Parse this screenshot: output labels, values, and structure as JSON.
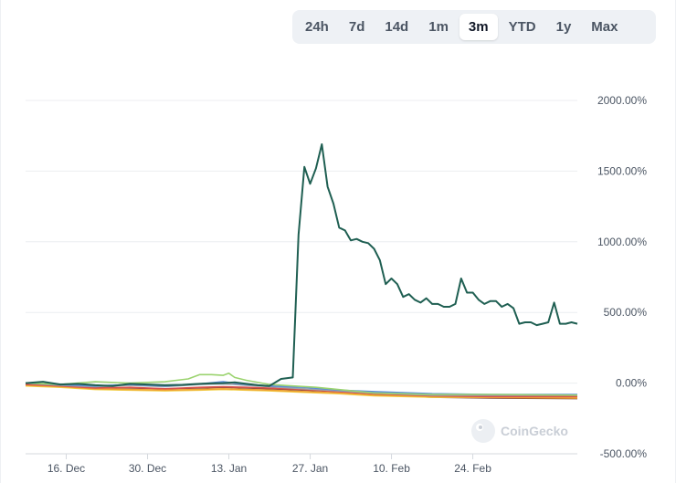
{
  "range_selector": {
    "options": [
      "24h",
      "7d",
      "14d",
      "1m",
      "3m",
      "YTD",
      "1y",
      "Max"
    ],
    "selected": "3m"
  },
  "watermark": "CoinGecko",
  "chart_data": {
    "type": "line",
    "x_tick_labels": [
      "16. Dec",
      "30. Dec",
      "13. Jan",
      "27. Jan",
      "10. Feb",
      "24. Feb"
    ],
    "y_tick_labels": [
      "2000.00%",
      "1500.00%",
      "1000.00%",
      "500.00%",
      "0.00%",
      "-500.00%"
    ],
    "ylim": [
      -500,
      2000
    ],
    "grid": "horizontal",
    "x_unit": "days since start of 3m window (16. Dec = day 7)",
    "series": [
      {
        "color": "#1f5f52",
        "points": [
          [
            0,
            0
          ],
          [
            3,
            10
          ],
          [
            6,
            -10
          ],
          [
            9,
            -5
          ],
          [
            12,
            -15
          ],
          [
            15,
            -20
          ],
          [
            18,
            -5
          ],
          [
            21,
            -10
          ],
          [
            24,
            -15
          ],
          [
            27,
            -12
          ],
          [
            30,
            -5
          ],
          [
            32,
            -2
          ],
          [
            34,
            0
          ],
          [
            36,
            5
          ],
          [
            38,
            -5
          ],
          [
            40,
            -15
          ],
          [
            42,
            -20
          ],
          [
            44,
            30
          ],
          [
            46,
            40
          ],
          [
            47,
            1050
          ],
          [
            48,
            1530
          ],
          [
            49,
            1410
          ],
          [
            50,
            1520
          ],
          [
            51,
            1690
          ],
          [
            52,
            1390
          ],
          [
            53,
            1270
          ],
          [
            54,
            1100
          ],
          [
            55,
            1080
          ],
          [
            56,
            1010
          ],
          [
            57,
            1020
          ],
          [
            58,
            1000
          ],
          [
            59,
            990
          ],
          [
            60,
            950
          ],
          [
            61,
            870
          ],
          [
            62,
            700
          ],
          [
            63,
            740
          ],
          [
            64,
            700
          ],
          [
            65,
            610
          ],
          [
            66,
            630
          ],
          [
            67,
            590
          ],
          [
            68,
            570
          ],
          [
            69,
            600
          ],
          [
            70,
            560
          ],
          [
            71,
            560
          ],
          [
            72,
            540
          ],
          [
            73,
            540
          ],
          [
            74,
            560
          ],
          [
            75,
            740
          ],
          [
            76,
            640
          ],
          [
            77,
            640
          ],
          [
            78,
            590
          ],
          [
            79,
            560
          ],
          [
            80,
            580
          ],
          [
            81,
            580
          ],
          [
            82,
            540
          ],
          [
            83,
            560
          ],
          [
            84,
            530
          ],
          [
            85,
            420
          ],
          [
            86,
            430
          ],
          [
            87,
            430
          ],
          [
            88,
            410
          ],
          [
            89,
            420
          ],
          [
            90,
            430
          ],
          [
            91,
            570
          ],
          [
            92,
            420
          ],
          [
            93,
            420
          ],
          [
            94,
            430
          ],
          [
            95,
            420
          ]
        ]
      },
      {
        "color": "#9bd36f",
        "points": [
          [
            0,
            0
          ],
          [
            6,
            -10
          ],
          [
            12,
            10
          ],
          [
            18,
            0
          ],
          [
            24,
            10
          ],
          [
            28,
            30
          ],
          [
            30,
            60
          ],
          [
            32,
            60
          ],
          [
            34,
            55
          ],
          [
            35,
            70
          ],
          [
            36,
            40
          ],
          [
            38,
            20
          ],
          [
            42,
            -10
          ],
          [
            46,
            -20
          ],
          [
            50,
            -30
          ],
          [
            55,
            -50
          ],
          [
            60,
            -70
          ],
          [
            70,
            -80
          ],
          [
            80,
            -80
          ],
          [
            95,
            -85
          ]
        ]
      },
      {
        "color": "#5b8bd8",
        "points": [
          [
            0,
            0
          ],
          [
            6,
            -10
          ],
          [
            12,
            -20
          ],
          [
            18,
            -10
          ],
          [
            24,
            -20
          ],
          [
            30,
            -5
          ],
          [
            34,
            10
          ],
          [
            38,
            -10
          ],
          [
            42,
            -20
          ],
          [
            48,
            -30
          ],
          [
            54,
            -50
          ],
          [
            60,
            -60
          ],
          [
            70,
            -75
          ],
          [
            80,
            -80
          ],
          [
            95,
            -80
          ]
        ]
      },
      {
        "color": "#9aa3ad",
        "points": [
          [
            0,
            0
          ],
          [
            6,
            -15
          ],
          [
            12,
            -25
          ],
          [
            18,
            -15
          ],
          [
            24,
            -25
          ],
          [
            30,
            -10
          ],
          [
            34,
            -5
          ],
          [
            38,
            -15
          ],
          [
            42,
            -25
          ],
          [
            48,
            -40
          ],
          [
            54,
            -55
          ],
          [
            60,
            -70
          ],
          [
            70,
            -85
          ],
          [
            80,
            -85
          ],
          [
            95,
            -85
          ]
        ]
      },
      {
        "color": "#d9534f",
        "points": [
          [
            0,
            -10
          ],
          [
            6,
            -20
          ],
          [
            12,
            -35
          ],
          [
            18,
            -30
          ],
          [
            24,
            -40
          ],
          [
            30,
            -30
          ],
          [
            34,
            -25
          ],
          [
            38,
            -30
          ],
          [
            42,
            -35
          ],
          [
            48,
            -45
          ],
          [
            54,
            -60
          ],
          [
            60,
            -75
          ],
          [
            70,
            -90
          ],
          [
            80,
            -95
          ],
          [
            95,
            -95
          ]
        ]
      },
      {
        "color": "#f0a330",
        "points": [
          [
            0,
            -15
          ],
          [
            6,
            -25
          ],
          [
            12,
            -40
          ],
          [
            18,
            -45
          ],
          [
            24,
            -50
          ],
          [
            30,
            -45
          ],
          [
            34,
            -40
          ],
          [
            38,
            -45
          ],
          [
            42,
            -50
          ],
          [
            48,
            -60
          ],
          [
            54,
            -70
          ],
          [
            60,
            -85
          ],
          [
            70,
            -95
          ],
          [
            80,
            -100
          ],
          [
            95,
            -105
          ]
        ]
      },
      {
        "color": "#f2d24b",
        "points": [
          [
            0,
            -20
          ],
          [
            6,
            -30
          ],
          [
            12,
            -45
          ],
          [
            18,
            -50
          ],
          [
            24,
            -55
          ],
          [
            30,
            -50
          ],
          [
            34,
            -45
          ],
          [
            38,
            -50
          ],
          [
            42,
            -55
          ],
          [
            48,
            -65
          ],
          [
            54,
            -75
          ],
          [
            60,
            -90
          ],
          [
            70,
            -100
          ],
          [
            80,
            -100
          ],
          [
            95,
            -100
          ]
        ]
      },
      {
        "color": "#8b4f3a",
        "points": [
          [
            0,
            -10
          ],
          [
            6,
            -20
          ],
          [
            12,
            -30
          ],
          [
            18,
            -35
          ],
          [
            24,
            -40
          ],
          [
            30,
            -35
          ],
          [
            34,
            -30
          ],
          [
            38,
            -35
          ],
          [
            42,
            -40
          ],
          [
            48,
            -50
          ],
          [
            54,
            -60
          ],
          [
            60,
            -80
          ],
          [
            70,
            -100
          ],
          [
            80,
            -105
          ],
          [
            95,
            -110
          ]
        ]
      }
    ]
  }
}
